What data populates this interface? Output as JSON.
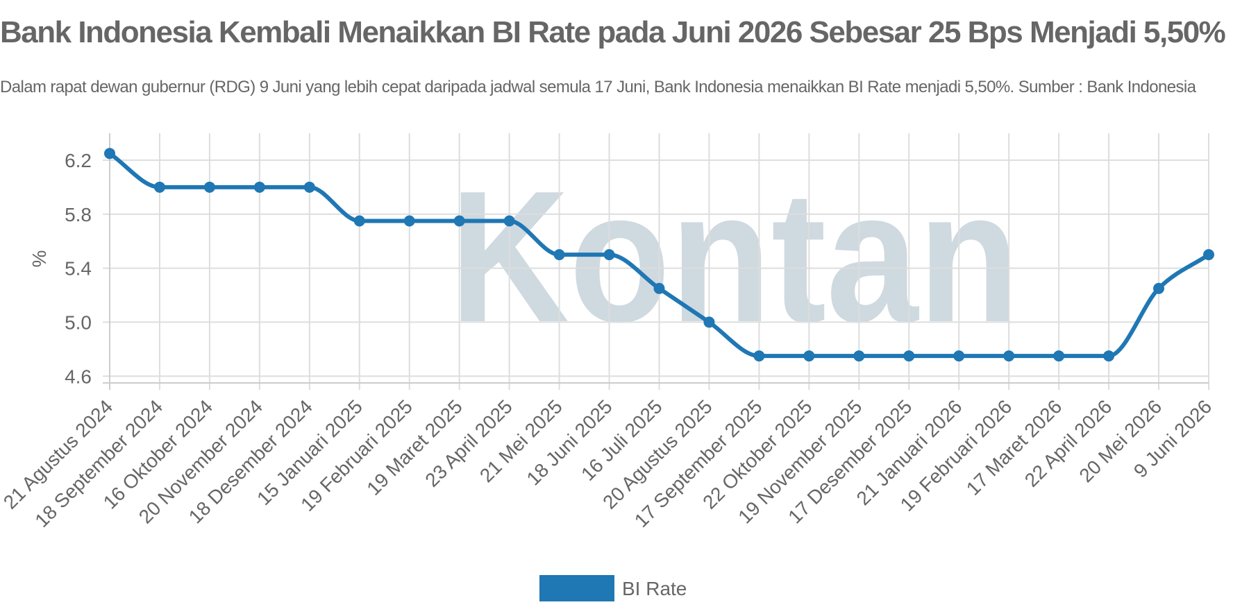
{
  "title": "Bank Indonesia Kembali Menaikkan BI Rate pada Juni 2026 Sebesar 25 Bps Menjadi 5,50%",
  "subtitle": "Dalam rapat dewan gubernur (RDG) 9 Juni yang lebih cepat daripada jadwal semula 17 Juni, Bank Indonesia menaikkan BI Rate menjadi 5,50%. Sumber : Bank Indonesia",
  "watermark": "Kontan",
  "chart_data": {
    "type": "line",
    "ylabel": "%",
    "ylim": [
      4.55,
      6.4
    ],
    "yticks": [
      "4.6",
      "5.0",
      "5.4",
      "5.8",
      "6.2"
    ],
    "grid": true,
    "legend_position": "bottom",
    "categories": [
      "21 Agustus 2024",
      "18 September 2024",
      "16 Oktober 2024",
      "20 November 2024",
      "18 Desember 2024",
      "15 Januari 2025",
      "19 Februari 2025",
      "19 Maret 2025",
      "23 April 2025",
      "21 Mei 2025",
      "18 Juni 2025",
      "16 Juli 2025",
      "20 Agustus 2025",
      "17 September 2025",
      "22 Oktober 2025",
      "19 November 2025",
      "17 Desember 2025",
      "21 Januari 2026",
      "19 Februari 2026",
      "17 Maret 2026",
      "22 April 2026",
      "20 Mei 2026",
      "9 Juni 2026"
    ],
    "series": [
      {
        "name": "BI Rate",
        "color": "#1f77b4",
        "values": [
          6.25,
          6.0,
          6.0,
          6.0,
          6.0,
          5.75,
          5.75,
          5.75,
          5.75,
          5.5,
          5.5,
          5.25,
          5.0,
          4.75,
          4.75,
          4.75,
          4.75,
          4.75,
          4.75,
          4.75,
          4.75,
          5.25,
          5.5
        ]
      }
    ]
  }
}
